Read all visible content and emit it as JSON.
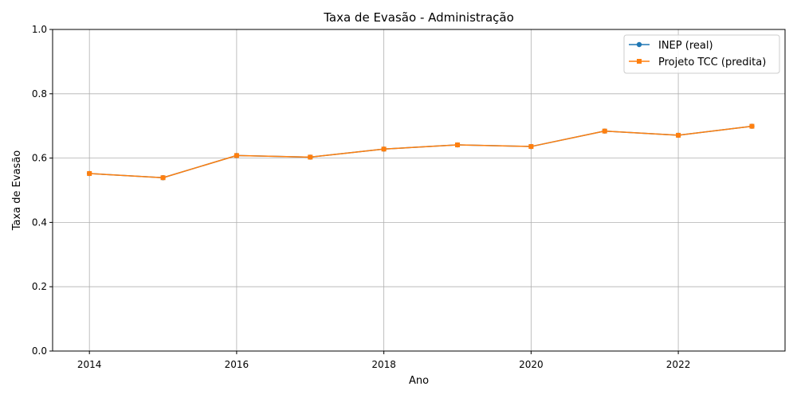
{
  "chart_data": {
    "type": "line",
    "title": "Taxa de Evasão - Administração",
    "xlabel": "Ano",
    "ylabel": "Taxa de Evasão",
    "xlim": [
      2013.5,
      2023.45
    ],
    "ylim": [
      0.0,
      1.0
    ],
    "xticks": [
      "2014",
      "2016",
      "2018",
      "2020",
      "2022"
    ],
    "yticks": [
      "0.0",
      "0.2",
      "0.4",
      "0.6",
      "0.8",
      "1.0"
    ],
    "grid": true,
    "legend_position": "top-right",
    "x": [
      2014,
      2015,
      2016,
      2017,
      2018,
      2019,
      2020,
      2021,
      2022,
      2023
    ],
    "series": [
      {
        "name": "INEP (real)",
        "color": "#1f77b4",
        "marker": "circle",
        "values": [
          0.552,
          0.539,
          0.608,
          0.603,
          0.628,
          0.641,
          0.636,
          0.684,
          0.671,
          0.699
        ]
      },
      {
        "name": "Projeto TCC (predita)",
        "color": "#ff7f0e",
        "marker": "square",
        "values": [
          0.552,
          0.539,
          0.608,
          0.603,
          0.628,
          0.641,
          0.636,
          0.684,
          0.671,
          0.699
        ]
      }
    ]
  }
}
